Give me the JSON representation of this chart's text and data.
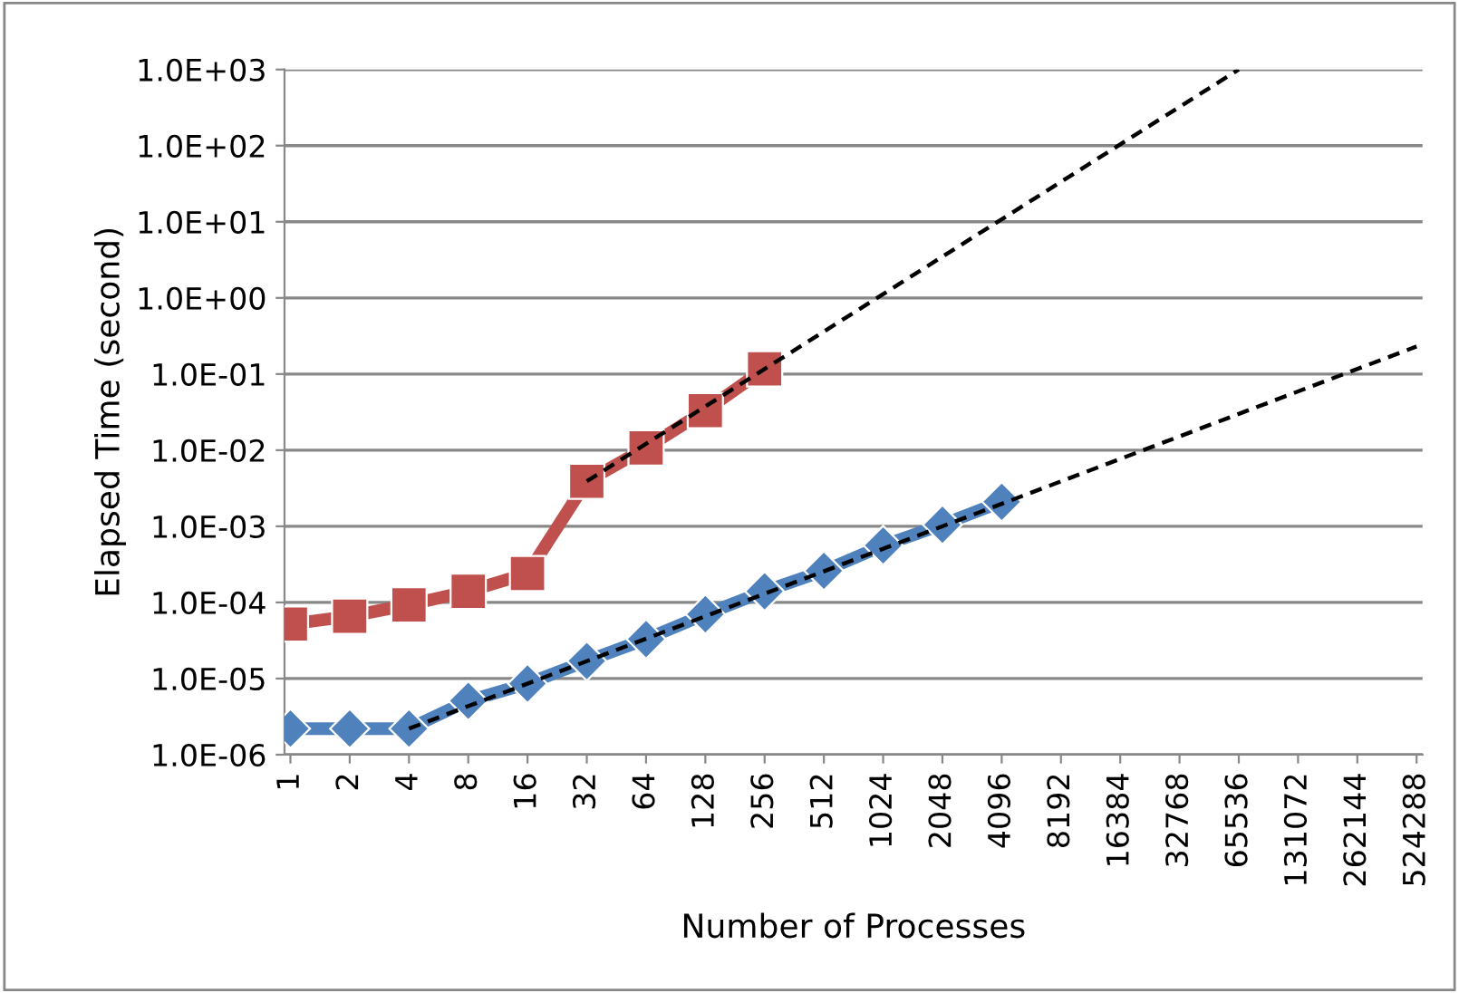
{
  "chart_data": {
    "type": "line",
    "xlabel": "Number of Processes",
    "ylabel": "Elapsed Time (second)",
    "categories": [
      "1",
      "2",
      "4",
      "8",
      "16",
      "32",
      "64",
      "128",
      "256",
      "512",
      "1024",
      "2048",
      "4096",
      "8192",
      "16384",
      "32768",
      "65536",
      "131072",
      "262144",
      "524288"
    ],
    "log": "y",
    "ylim": [
      1e-06,
      1000.0
    ],
    "yticks": [
      {
        "value": 1e-06,
        "label": "1.0E-06"
      },
      {
        "value": 1e-05,
        "label": "1.0E-05"
      },
      {
        "value": 0.0001,
        "label": "1.0E-04"
      },
      {
        "value": 0.001,
        "label": "1.0E-03"
      },
      {
        "value": 0.01,
        "label": "1.0E-02"
      },
      {
        "value": 0.1,
        "label": "1.0E-01"
      },
      {
        "value": 1,
        "label": "1.0E+00"
      },
      {
        "value": 10,
        "label": "1.0E+01"
      },
      {
        "value": 100,
        "label": "1.0E+02"
      },
      {
        "value": 1000,
        "label": "1.0E+03"
      }
    ],
    "grid": "y",
    "series": [
      {
        "color": "#c0504d",
        "marker": "square",
        "line_style": "solid",
        "values": [
          5.2e-05,
          6.6e-05,
          9.3e-05,
          0.00014,
          0.00024,
          0.0039,
          0.0107,
          0.033,
          0.117,
          null,
          null,
          null,
          null,
          null,
          null,
          null,
          null,
          null,
          null,
          null
        ]
      },
      {
        "color": "#4f81bd",
        "marker": "diamond",
        "line_style": "solid",
        "values": [
          2.2e-06,
          2.2e-06,
          2.2e-06,
          5.1e-06,
          8.6e-06,
          1.7e-05,
          3.3e-05,
          7e-05,
          0.00014,
          0.00026,
          0.00056,
          0.00105,
          0.0021,
          null,
          null,
          null,
          null,
          null,
          null,
          null
        ]
      },
      {
        "color": "#000000",
        "marker": "none",
        "line_style": "dashed",
        "values": [
          null,
          null,
          null,
          null,
          null,
          0.0039,
          null,
          null,
          null,
          null,
          null,
          null,
          null,
          null,
          null,
          null,
          1000,
          null,
          null,
          null
        ]
      },
      {
        "color": "#000000",
        "marker": "none",
        "line_style": "dashed",
        "values": [
          null,
          null,
          2.2e-06,
          null,
          null,
          null,
          null,
          null,
          null,
          null,
          null,
          null,
          null,
          null,
          null,
          null,
          null,
          null,
          null,
          0.23
        ]
      }
    ]
  }
}
